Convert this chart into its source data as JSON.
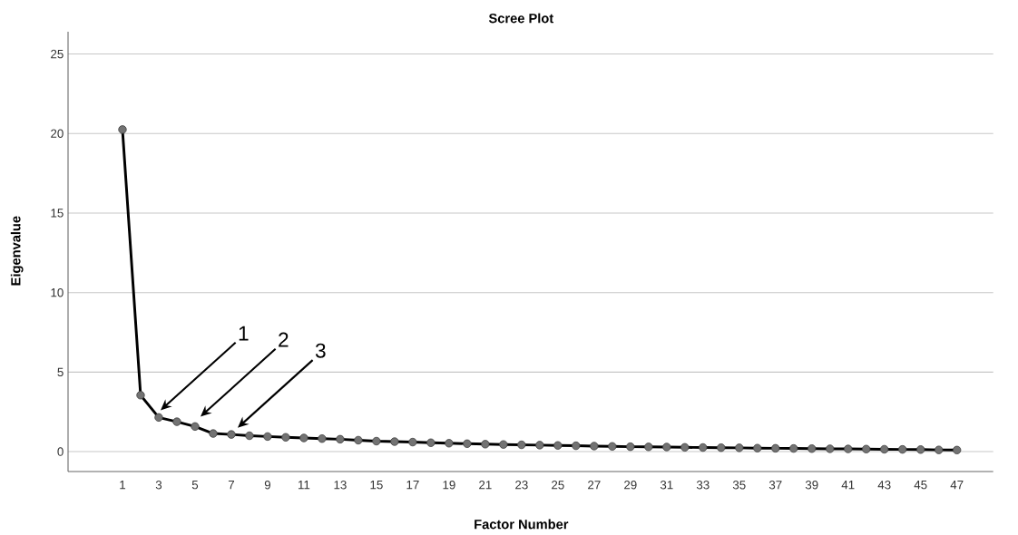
{
  "chart_data": {
    "type": "line",
    "title": "Scree Plot",
    "xlabel": "Factor Number",
    "ylabel": "Eigenvalue",
    "x": [
      1,
      2,
      3,
      4,
      5,
      6,
      7,
      8,
      9,
      10,
      11,
      12,
      13,
      14,
      15,
      16,
      17,
      18,
      19,
      20,
      21,
      22,
      23,
      24,
      25,
      26,
      27,
      28,
      29,
      30,
      31,
      32,
      33,
      34,
      35,
      36,
      37,
      38,
      39,
      40,
      41,
      42,
      43,
      44,
      45,
      46,
      47
    ],
    "series": [
      {
        "color": "#000000",
        "values": [
          20.25,
          3.55,
          2.15,
          1.88,
          1.58,
          1.14,
          1.08,
          1.0,
          0.95,
          0.9,
          0.86,
          0.82,
          0.78,
          0.72,
          0.66,
          0.63,
          0.6,
          0.56,
          0.53,
          0.5,
          0.47,
          0.45,
          0.43,
          0.41,
          0.39,
          0.37,
          0.35,
          0.33,
          0.31,
          0.3,
          0.29,
          0.27,
          0.26,
          0.25,
          0.24,
          0.22,
          0.21,
          0.2,
          0.19,
          0.18,
          0.17,
          0.16,
          0.15,
          0.14,
          0.13,
          0.11,
          0.1
        ]
      }
    ],
    "xlim": [
      -2,
      49
    ],
    "ylim": [
      -1.25,
      26.4
    ],
    "xticks": [
      1,
      3,
      5,
      7,
      9,
      11,
      13,
      15,
      17,
      19,
      21,
      23,
      25,
      27,
      29,
      31,
      33,
      35,
      37,
      39,
      41,
      43,
      45,
      47
    ],
    "yticks": [
      0,
      5,
      10,
      15,
      20,
      25
    ],
    "grid": "y",
    "marker": "circle",
    "line_style": "solid",
    "annotations": [
      "1",
      "2",
      "3"
    ]
  }
}
